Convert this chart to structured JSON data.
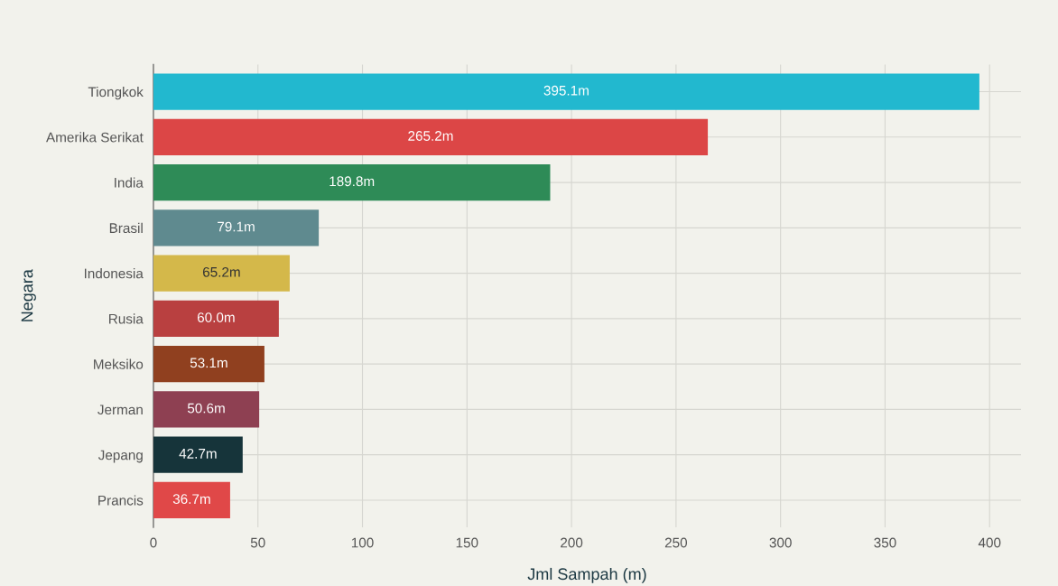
{
  "chart_data": {
    "type": "bar",
    "orientation": "horizontal",
    "xlabel": "Jml Sampah (m)",
    "ylabel": "Negara",
    "categories": [
      "Tiongkok",
      "Amerika Serikat",
      "India",
      "Brasil",
      "Indonesia",
      "Rusia",
      "Meksiko",
      "Jerman",
      "Jepang",
      "Prancis"
    ],
    "values": [
      395.1,
      265.2,
      189.8,
      79.1,
      65.2,
      60.0,
      53.1,
      50.6,
      42.7,
      36.7
    ],
    "value_labels": [
      "395.1m",
      "265.2m",
      "189.8m",
      "79.1m",
      "65.2m",
      "60.0m",
      "53.1m",
      "50.6m",
      "42.7m",
      "36.7m"
    ],
    "colors": [
      "#22b8cf",
      "#dc4646",
      "#2e8b57",
      "#5f8a8f",
      "#d4b84a",
      "#b94040",
      "#90401f",
      "#8e4052",
      "#16343a",
      "#e04848"
    ],
    "xlim": [
      0,
      415
    ],
    "xticks": [
      0,
      50,
      100,
      150,
      200,
      250,
      300,
      350,
      400
    ],
    "grid": true
  }
}
